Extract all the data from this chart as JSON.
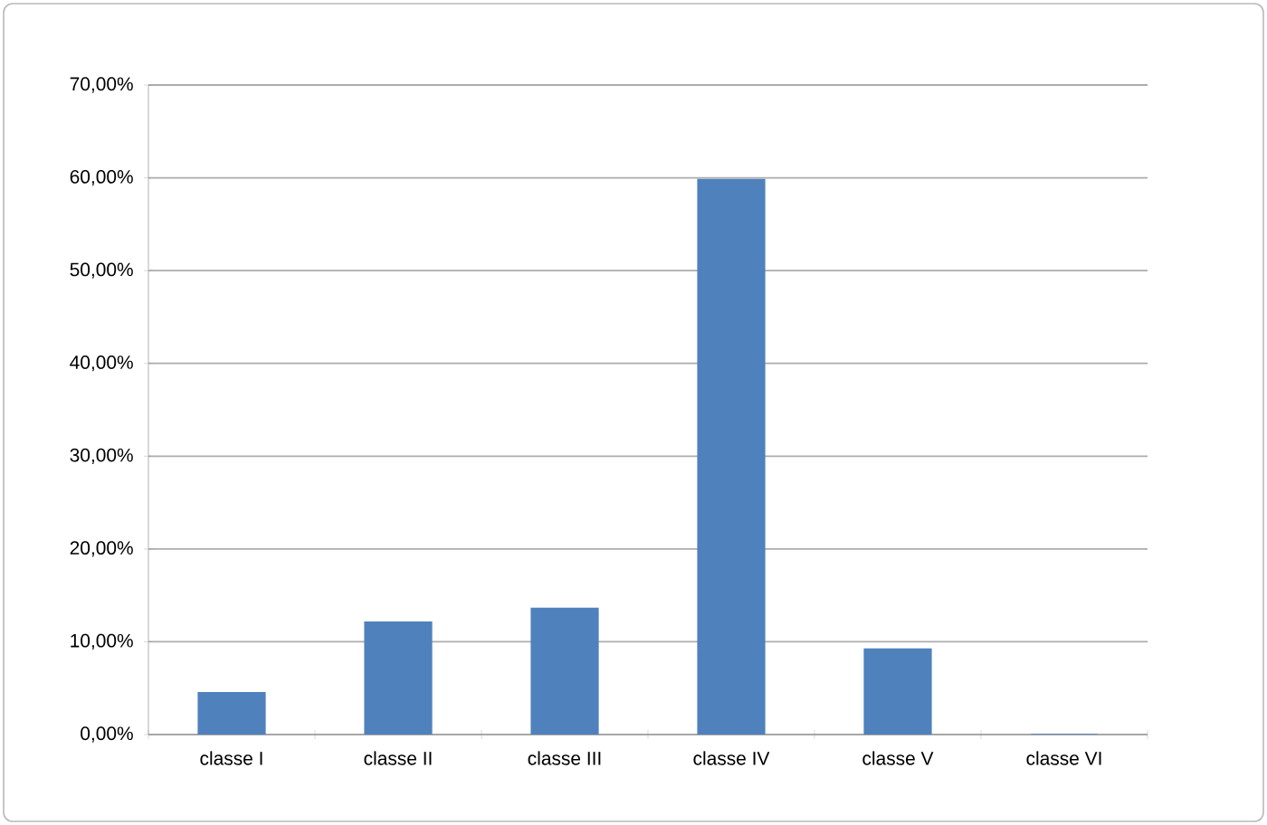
{
  "chart_data": {
    "type": "bar",
    "categories": [
      "classe I",
      "classe II",
      "classe III",
      "classe IV",
      "classe V",
      "classe VI"
    ],
    "values": [
      4.5,
      12.1,
      13.6,
      59.8,
      9.2,
      0
    ],
    "color": "#4f81bd",
    "ylim": [
      0,
      70
    ],
    "yticks": [
      {
        "value": 0,
        "label": "0,00%"
      },
      {
        "value": 10,
        "label": "10,00%"
      },
      {
        "value": 20,
        "label": "20,00%"
      },
      {
        "value": 30,
        "label": "30,00%"
      },
      {
        "value": 40,
        "label": "40,00%"
      },
      {
        "value": 50,
        "label": "50,00%"
      },
      {
        "value": 60,
        "label": "60,00%"
      },
      {
        "value": 70,
        "label": "70,00%"
      }
    ],
    "grid": "y"
  }
}
